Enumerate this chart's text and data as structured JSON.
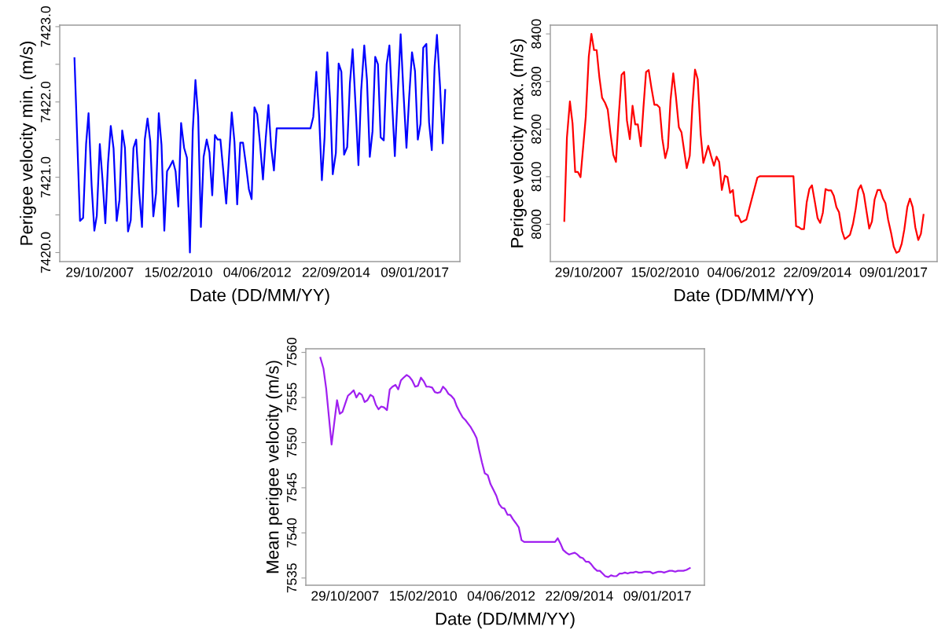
{
  "chart_data": [
    {
      "type": "line",
      "xlabel": "Date (DD/MM/YY)",
      "ylabel": "Perigee velocity min. (m/s)",
      "xlim": [
        "2006-08-29",
        "2018-05-05"
      ],
      "ylim": [
        7419.88,
        7423.02
      ],
      "xticks": [
        {
          "value": "2007-10-29",
          "label": "29/10/2007"
        },
        {
          "value": "2010-02-15",
          "label": "15/02/2010"
        },
        {
          "value": "2012-06-04",
          "label": "04/06/2012"
        },
        {
          "value": "2014-09-22",
          "label": "22/09/2014"
        },
        {
          "value": "2017-01-09",
          "label": "09/01/2017"
        }
      ],
      "yticks": [
        {
          "value": 7420.0,
          "label": "7420.0"
        },
        {
          "value": 7420.5,
          "label": null
        },
        {
          "value": 7421.0,
          "label": "7421.0"
        },
        {
          "value": 7421.5,
          "label": null
        },
        {
          "value": 7422.0,
          "label": "7422.0"
        },
        {
          "value": 7422.5,
          "label": null
        },
        {
          "value": 7423.0,
          "label": "7423.0"
        }
      ],
      "x": [
        "2007-02-02",
        "2007-04-02",
        "2007-05-05",
        "2007-06-06",
        "2007-07-02",
        "2007-08-04",
        "2007-09-02",
        "2007-09-28",
        "2007-10-30",
        "2007-11-29",
        "2007-12-28",
        "2008-01-26",
        "2008-02-24",
        "2008-03-25",
        "2008-04-27",
        "2008-05-27",
        "2008-06-25",
        "2008-07-24",
        "2008-08-26",
        "2008-09-24",
        "2008-10-23",
        "2008-11-21",
        "2008-12-24",
        "2009-01-22",
        "2009-02-21",
        "2009-03-22",
        "2009-04-20",
        "2009-05-23",
        "2009-06-21",
        "2009-07-20",
        "2009-08-18",
        "2009-09-17",
        "2009-10-16",
        "2009-11-14",
        "2009-12-17",
        "2010-01-15",
        "2010-02-13",
        "2010-03-15",
        "2010-04-16",
        "2010-05-16",
        "2010-06-17",
        "2010-07-17",
        "2010-08-15",
        "2010-09-13",
        "2010-10-12",
        "2010-11-10",
        "2010-12-13",
        "2011-01-11",
        "2011-02-10",
        "2011-03-11",
        "2011-04-09",
        "2011-05-08",
        "2011-06-06",
        "2011-07-09",
        "2011-08-08",
        "2011-09-06",
        "2011-10-05",
        "2011-11-03",
        "2011-12-06",
        "2012-01-04",
        "2012-02-02",
        "2012-03-07",
        "2012-04-05",
        "2012-05-05",
        "2012-06-03",
        "2012-07-02",
        "2012-08-04",
        "2012-09-02",
        "2012-10-01",
        "2012-10-30",
        "2012-11-29",
        "2012-12-28",
        "2013-12-24",
        "2014-01-22",
        "2014-02-24",
        "2014-03-25",
        "2014-04-24",
        "2014-05-23",
        "2014-06-21",
        "2014-07-20",
        "2014-08-18",
        "2014-09-20",
        "2014-10-20",
        "2014-11-18",
        "2014-12-17",
        "2015-01-19",
        "2015-02-17",
        "2015-03-18",
        "2015-04-20",
        "2015-05-19",
        "2015-06-17",
        "2015-07-20",
        "2015-08-18",
        "2015-09-17",
        "2015-10-16",
        "2015-11-14",
        "2015-12-13",
        "2016-01-11",
        "2016-02-13",
        "2016-03-15",
        "2016-04-13",
        "2016-05-12",
        "2016-06-10",
        "2016-07-13",
        "2016-08-11",
        "2016-09-09",
        "2016-10-12",
        "2016-11-10",
        "2016-12-10",
        "2017-01-11",
        "2017-02-10",
        "2017-03-11",
        "2017-04-09",
        "2017-05-12",
        "2017-06-10",
        "2017-07-09",
        "2017-08-08",
        "2017-09-02",
        "2017-10-05",
        "2017-11-03",
        "2017-11-29"
      ],
      "series": [
        {
          "color": "#0000ff",
          "values": [
            7422.58,
            7420.42,
            7420.46,
            7421.44,
            7421.85,
            7420.89,
            7420.29,
            7420.49,
            7421.44,
            7420.95,
            7420.39,
            7421.19,
            7421.68,
            7421.38,
            7420.42,
            7420.7,
            7421.62,
            7421.39,
            7420.28,
            7420.43,
            7421.39,
            7421.5,
            7420.79,
            7420.34,
            7421.5,
            7421.78,
            7421.48,
            7420.48,
            7420.79,
            7421.85,
            7421.43,
            7420.29,
            7421.08,
            7421.14,
            7421.22,
            7421.08,
            7420.61,
            7421.72,
            7421.39,
            7421.26,
            7420.0,
            7421.61,
            7422.29,
            7421.81,
            7420.34,
            7421.27,
            7421.5,
            7421.33,
            7420.76,
            7421.56,
            7421.5,
            7421.5,
            7421.11,
            7420.65,
            7421.27,
            7421.86,
            7421.47,
            7420.64,
            7421.46,
            7421.46,
            7421.19,
            7420.84,
            7420.71,
            7421.93,
            7421.84,
            7421.47,
            7420.97,
            7421.51,
            7421.96,
            7421.4,
            7421.09,
            7421.65,
            7421.65,
            7421.8,
            7422.4,
            7421.83,
            7420.96,
            7421.53,
            7422.66,
            7422.03,
            7421.04,
            7421.32,
            7422.51,
            7422.4,
            7421.3,
            7421.4,
            7422.25,
            7422.7,
            7421.91,
            7421.16,
            7422.15,
            7422.75,
            7422.29,
            7421.27,
            7421.61,
            7422.6,
            7422.5,
            7421.53,
            7421.49,
            7422.5,
            7422.75,
            7421.99,
            7421.28,
            7422.15,
            7422.9,
            7422.15,
            7421.39,
            7422.07,
            7422.66,
            7422.41,
            7421.5,
            7421.71,
            7422.72,
            7422.77,
            7421.73,
            7421.36,
            7422.47,
            7422.89,
            7422.21,
            7421.45,
            7422.16
          ]
        }
      ]
    },
    {
      "type": "line",
      "xlabel": "Date (DD/MM/YY)",
      "ylabel": "Perigee velocity max. (m/s)",
      "xlim": [
        "2006-08-29",
        "2018-05-05"
      ],
      "ylim": [
        7921.6,
        8418.4
      ],
      "xticks": [
        {
          "value": "2007-10-29",
          "label": "29/10/2007"
        },
        {
          "value": "2010-02-15",
          "label": "15/02/2010"
        },
        {
          "value": "2012-06-04",
          "label": "04/06/2012"
        },
        {
          "value": "2014-09-22",
          "label": "22/09/2014"
        },
        {
          "value": "2017-01-09",
          "label": "09/01/2017"
        }
      ],
      "yticks": [
        8000,
        8100,
        8200,
        8300,
        8400
      ],
      "x": [
        "2007-01-30",
        "2007-02-28",
        "2007-04-02",
        "2007-05-01",
        "2007-05-30",
        "2007-06-28",
        "2007-07-28",
        "2007-08-26",
        "2007-09-24",
        "2007-10-27",
        "2007-11-25",
        "2007-12-24",
        "2008-01-22",
        "2008-02-21",
        "2008-03-22",
        "2008-04-24",
        "2008-05-23",
        "2008-06-21",
        "2008-07-24",
        "2008-08-22",
        "2008-09-20",
        "2008-10-23",
        "2008-11-21",
        "2008-12-21",
        "2009-01-22",
        "2009-02-21",
        "2009-03-22",
        "2009-04-20",
        "2009-05-23",
        "2009-06-21",
        "2009-07-20",
        "2009-08-18",
        "2009-09-17",
        "2009-10-20",
        "2009-11-18",
        "2009-12-17",
        "2010-01-15",
        "2010-02-17",
        "2010-03-18",
        "2010-04-16",
        "2010-05-16",
        "2010-06-14",
        "2010-07-17",
        "2010-08-15",
        "2010-09-13",
        "2010-10-12",
        "2010-11-14",
        "2010-12-13",
        "2011-01-11",
        "2011-02-10",
        "2011-03-15",
        "2011-04-13",
        "2011-05-12",
        "2011-06-06",
        "2011-07-06",
        "2011-08-08",
        "2011-09-06",
        "2011-10-05",
        "2011-11-03",
        "2011-12-06",
        "2012-01-04",
        "2012-02-02",
        "2012-03-04",
        "2012-04-02",
        "2012-05-01",
        "2012-06-03",
        "2012-07-02",
        "2012-07-31",
        "2012-11-29",
        "2012-12-28",
        "2014-01-01",
        "2014-01-30",
        "2014-02-28",
        "2014-03-29",
        "2014-04-27",
        "2014-05-27",
        "2014-06-25",
        "2014-07-24",
        "2014-08-26",
        "2014-09-24",
        "2014-10-23",
        "2014-11-21",
        "2014-12-21",
        "2015-01-22",
        "2015-02-21",
        "2015-03-22",
        "2015-04-20",
        "2015-05-19",
        "2015-06-21",
        "2015-07-20",
        "2015-08-18",
        "2015-09-17",
        "2015-10-20",
        "2015-11-18",
        "2015-12-17",
        "2016-01-15",
        "2016-02-17",
        "2016-03-18",
        "2016-04-16",
        "2016-05-16",
        "2016-06-14",
        "2016-07-17",
        "2016-08-15",
        "2016-09-13",
        "2016-10-12",
        "2016-11-10",
        "2016-12-13",
        "2017-01-11",
        "2017-02-10",
        "2017-03-11",
        "2017-04-09",
        "2017-05-08",
        "2017-06-10",
        "2017-07-09",
        "2017-08-08",
        "2017-09-06",
        "2017-10-09",
        "2017-11-07",
        "2017-12-06"
      ],
      "series": [
        {
          "color": "#ff0000",
          "values": [
            8007,
            8182,
            8258,
            8212,
            8110,
            8110,
            8099,
            8162,
            8226,
            8352,
            8400,
            8366,
            8366,
            8309,
            8266,
            8255,
            8241,
            8193,
            8146,
            8131,
            8223,
            8314,
            8320,
            8218,
            8179,
            8249,
            8210,
            8210,
            8164,
            8245,
            8320,
            8324,
            8287,
            8251,
            8251,
            8245,
            8180,
            8139,
            8161,
            8261,
            8317,
            8269,
            8204,
            8193,
            8155,
            8118,
            8144,
            8249,
            8325,
            8305,
            8188,
            8129,
            8148,
            8165,
            8144,
            8123,
            8142,
            8131,
            8072,
            8102,
            8099,
            8066,
            8072,
            8018,
            8018,
            8004,
            8007,
            8010,
            8098,
            8101,
            8101,
            7996,
            7994,
            7990,
            7990,
            8046,
            8074,
            8082,
            8046,
            8013,
            8003,
            8024,
            8074,
            8071,
            8071,
            8060,
            8036,
            8025,
            7986,
            7969,
            7973,
            7978,
            8001,
            8032,
            8072,
            8082,
            8063,
            8026,
            7991,
            8006,
            8052,
            8072,
            8072,
            8055,
            8044,
            8010,
            7982,
            7953,
            7940,
            7943,
            7959,
            7989,
            8036,
            8054,
            8036,
            7994,
            7967,
            7980,
            8020
          ]
        }
      ]
    },
    {
      "type": "line",
      "xlabel": "Date (DD/MM/YY)",
      "ylabel": "Mean perigee velocity (m/s)",
      "xlim": [
        "2006-09-02",
        "2018-05-30"
      ],
      "ylim": [
        7534.2,
        7560.4
      ],
      "xticks": [
        {
          "value": "2007-10-29",
          "label": "29/10/2007"
        },
        {
          "value": "2010-02-15",
          "label": "15/02/2010"
        },
        {
          "value": "2012-06-04",
          "label": "04/06/2012"
        },
        {
          "value": "2014-09-22",
          "label": "22/09/2014"
        },
        {
          "value": "2017-01-09",
          "label": "09/01/2017"
        }
      ],
      "yticks": [
        7535,
        7540,
        7545,
        7550,
        7555,
        7560
      ],
      "x": [
        "2007-02-06",
        "2007-03-11",
        "2007-04-09",
        "2007-05-08",
        "2007-06-06",
        "2007-07-06",
        "2007-08-04",
        "2007-09-02",
        "2007-10-01",
        "2007-10-30",
        "2007-11-29",
        "2008-01-01",
        "2008-01-30",
        "2008-02-28",
        "2008-03-29",
        "2008-04-27",
        "2008-05-27",
        "2008-06-25",
        "2008-07-28",
        "2008-08-26",
        "2008-09-24",
        "2008-10-23",
        "2008-11-21",
        "2008-12-21",
        "2009-01-22",
        "2009-02-21",
        "2009-03-22",
        "2009-04-24",
        "2009-05-23",
        "2009-06-21",
        "2009-07-20",
        "2009-08-22",
        "2009-09-20",
        "2009-10-20",
        "2009-11-21",
        "2009-12-21",
        "2010-01-22",
        "2010-02-21",
        "2010-03-22",
        "2010-04-20",
        "2010-05-23",
        "2010-06-21",
        "2010-07-20",
        "2010-08-18",
        "2010-09-17",
        "2010-10-16",
        "2010-11-14",
        "2010-12-13",
        "2011-01-15",
        "2011-02-13",
        "2011-03-15",
        "2011-04-16",
        "2011-05-16",
        "2011-06-14",
        "2011-07-13",
        "2011-08-15",
        "2011-09-13",
        "2011-10-12",
        "2011-11-10",
        "2011-12-10",
        "2012-01-11",
        "2012-02-10",
        "2012-03-11",
        "2012-04-13",
        "2012-05-12",
        "2012-06-10",
        "2012-07-09",
        "2012-08-11",
        "2012-09-09",
        "2012-10-09",
        "2012-11-07",
        "2012-12-10",
        "2013-01-08",
        "2013-02-06",
        "2014-01-04",
        "2014-02-02",
        "2014-03-04",
        "2014-04-02",
        "2014-05-05",
        "2014-06-03",
        "2014-07-02",
        "2014-08-04",
        "2014-09-02",
        "2014-10-01",
        "2014-10-30",
        "2014-12-02",
        "2015-01-01",
        "2015-01-30",
        "2015-02-28",
        "2015-04-02",
        "2015-05-01",
        "2015-05-30",
        "2015-06-28",
        "2015-07-31",
        "2015-08-29",
        "2015-09-28",
        "2015-10-27",
        "2015-11-29",
        "2015-12-28",
        "2016-01-26",
        "2016-02-24",
        "2016-03-25",
        "2016-04-24",
        "2016-05-23",
        "2016-06-21",
        "2016-07-24",
        "2016-08-22",
        "2016-09-20",
        "2016-10-20",
        "2016-11-21",
        "2016-12-21",
        "2017-01-19",
        "2017-02-17",
        "2017-03-22",
        "2017-04-20",
        "2017-05-19",
        "2017-06-17",
        "2017-07-20",
        "2017-08-18",
        "2017-09-17",
        "2017-10-16",
        "2017-11-18",
        "2017-12-24"
      ],
      "series": [
        {
          "color": "#a020f0",
          "values": [
            7559.4,
            7558.2,
            7556.0,
            7552.9,
            7549.8,
            7552.3,
            7554.7,
            7553.2,
            7553.4,
            7554.3,
            7555.2,
            7555.5,
            7555.8,
            7555.0,
            7555.5,
            7555.3,
            7554.5,
            7554.7,
            7555.3,
            7555.1,
            7554.2,
            7553.7,
            7554.0,
            7553.9,
            7553.6,
            7555.9,
            7556.2,
            7556.4,
            7555.9,
            7556.9,
            7557.2,
            7557.5,
            7557.3,
            7556.9,
            7556.2,
            7556.3,
            7557.2,
            7556.8,
            7556.2,
            7556.2,
            7556.1,
            7555.6,
            7555.5,
            7555.6,
            7556.2,
            7555.9,
            7555.4,
            7555.2,
            7554.8,
            7554.0,
            7553.4,
            7552.8,
            7552.5,
            7552.1,
            7551.7,
            7551.1,
            7550.5,
            7549.1,
            7547.8,
            7546.6,
            7546.4,
            7545.4,
            7544.8,
            7544.1,
            7543.2,
            7542.8,
            7542.7,
            7542.0,
            7542.0,
            7541.5,
            7541.1,
            7540.6,
            7539.2,
            7539.0,
            7539.0,
            7539.4,
            7538.8,
            7538.1,
            7537.8,
            7537.6,
            7537.7,
            7537.8,
            7537.6,
            7537.3,
            7537.2,
            7536.8,
            7536.8,
            7536.5,
            7536.1,
            7535.8,
            7535.8,
            7535.5,
            7535.2,
            7535.1,
            7535.3,
            7535.2,
            7535.2,
            7535.5,
            7535.5,
            7535.6,
            7535.5,
            7535.6,
            7535.6,
            7535.7,
            7535.6,
            7535.6,
            7535.7,
            7535.7,
            7535.7,
            7535.5,
            7535.6,
            7535.7,
            7535.7,
            7535.6,
            7535.7,
            7535.8,
            7535.8,
            7535.7,
            7535.8,
            7535.8,
            7535.8,
            7535.9,
            7536.1
          ]
        }
      ]
    }
  ]
}
